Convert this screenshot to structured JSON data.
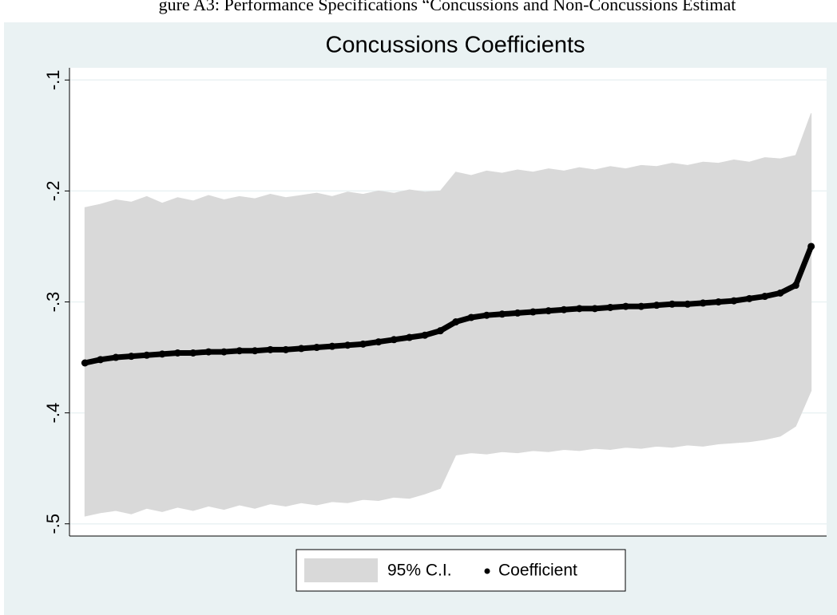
{
  "header": "gure A3: Performance Specifications “Concussions and Non-Concussions Estimat",
  "chart_data": {
    "type": "spec-curve",
    "title": "Concussions Coefficients",
    "x": [
      1,
      2,
      3,
      4,
      5,
      6,
      7,
      8,
      9,
      10,
      11,
      12,
      13,
      14,
      15,
      16,
      17,
      18,
      19,
      20,
      21,
      22,
      23,
      24,
      25,
      26,
      27,
      28,
      29,
      30,
      31,
      32,
      33,
      34,
      35,
      36,
      37,
      38,
      39,
      40,
      41,
      42,
      43,
      44,
      45,
      46,
      47,
      48
    ],
    "xlim": [
      0,
      49
    ],
    "ylim": [
      -0.511,
      -0.089
    ],
    "yticks": [
      {
        "value": -0.1,
        "label": "-.1"
      },
      {
        "value": -0.2,
        "label": "-.2"
      },
      {
        "value": -0.3,
        "label": "-.3"
      },
      {
        "value": -0.4,
        "label": "-.4"
      },
      {
        "value": -0.5,
        "label": "-.5"
      }
    ],
    "grid": true,
    "legend": "bottom",
    "series": [
      {
        "name": "95% C.I.",
        "color": "#d9d9d9",
        "upper": [
          -0.215,
          -0.212,
          -0.208,
          -0.21,
          -0.205,
          -0.211,
          -0.206,
          -0.209,
          -0.204,
          -0.208,
          -0.205,
          -0.207,
          -0.203,
          -0.206,
          -0.204,
          -0.202,
          -0.205,
          -0.201,
          -0.203,
          -0.2,
          -0.202,
          -0.199,
          -0.201,
          -0.2,
          -0.183,
          -0.186,
          -0.182,
          -0.184,
          -0.181,
          -0.183,
          -0.18,
          -0.182,
          -0.179,
          -0.181,
          -0.178,
          -0.18,
          -0.177,
          -0.178,
          -0.175,
          -0.177,
          -0.174,
          -0.175,
          -0.172,
          -0.174,
          -0.17,
          -0.171,
          -0.168,
          -0.13
        ],
        "lower": [
          -0.493,
          -0.49,
          -0.488,
          -0.491,
          -0.486,
          -0.489,
          -0.485,
          -0.488,
          -0.484,
          -0.487,
          -0.483,
          -0.486,
          -0.482,
          -0.484,
          -0.481,
          -0.483,
          -0.48,
          -0.481,
          -0.478,
          -0.479,
          -0.476,
          -0.477,
          -0.473,
          -0.468,
          -0.438,
          -0.436,
          -0.437,
          -0.435,
          -0.436,
          -0.434,
          -0.435,
          -0.433,
          -0.434,
          -0.432,
          -0.433,
          -0.431,
          -0.432,
          -0.43,
          -0.431,
          -0.429,
          -0.43,
          -0.428,
          -0.427,
          -0.426,
          -0.424,
          -0.421,
          -0.412,
          -0.38
        ]
      },
      {
        "name": "Coefficient",
        "color": "#000000",
        "values": [
          -0.355,
          -0.352,
          -0.35,
          -0.349,
          -0.348,
          -0.347,
          -0.346,
          -0.346,
          -0.345,
          -0.345,
          -0.344,
          -0.344,
          -0.343,
          -0.343,
          -0.342,
          -0.341,
          -0.34,
          -0.339,
          -0.338,
          -0.336,
          -0.334,
          -0.332,
          -0.33,
          -0.326,
          -0.318,
          -0.314,
          -0.312,
          -0.311,
          -0.31,
          -0.309,
          -0.308,
          -0.307,
          -0.306,
          -0.306,
          -0.305,
          -0.304,
          -0.304,
          -0.303,
          -0.302,
          -0.302,
          -0.301,
          -0.3,
          -0.299,
          -0.297,
          -0.295,
          -0.292,
          -0.285,
          -0.25
        ]
      }
    ]
  }
}
